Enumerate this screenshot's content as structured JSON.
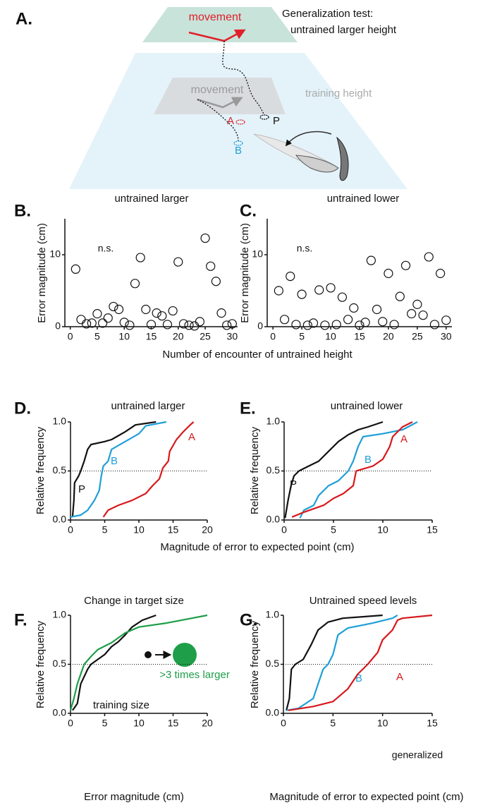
{
  "diagram": {
    "label": "A.",
    "test_movement": "movement",
    "test_title": "Generalization test:",
    "test_subtitle": "untrained larger height",
    "training_movement": "movement",
    "training_label": "training height",
    "point_a": "A",
    "point_p": "P",
    "point_b": "B"
  },
  "chart_data": [
    {
      "type": "scatter",
      "panel": "B.",
      "title": "untrained larger",
      "ylabel": "Error magnitude (cm)",
      "xlabel": "Number of encounter of untrained height",
      "annotation": "n.s.",
      "color": "#111111",
      "x": [
        1,
        2,
        3,
        4,
        5,
        6,
        7,
        8,
        9,
        10,
        11,
        12,
        13,
        14,
        15,
        16,
        17,
        18,
        19,
        20,
        21,
        22,
        23,
        24,
        25,
        26,
        27,
        28,
        29,
        30
      ],
      "values": [
        8.0,
        1.0,
        0.4,
        0.5,
        1.8,
        0.5,
        1.2,
        2.8,
        2.4,
        0.6,
        0.2,
        6.0,
        9.6,
        2.4,
        0.3,
        1.9,
        1.5,
        0.3,
        2.2,
        9.0,
        0.4,
        0.2,
        0.1,
        0.7,
        12.3,
        8.4,
        6.3,
        1.9,
        0.2,
        0.4
      ],
      "xlim": [
        -1,
        31
      ],
      "ylim": [
        0,
        15
      ],
      "xticks": [
        0,
        5,
        10,
        15,
        20,
        25,
        30
      ],
      "yticks": [
        0,
        10
      ]
    },
    {
      "type": "scatter",
      "panel": "C.",
      "title": "untrained lower",
      "ylabel": "Error magnitude (cm)",
      "annotation": "n.s.",
      "color": "#111111",
      "x": [
        1,
        2,
        3,
        4,
        5,
        6,
        7,
        8,
        9,
        10,
        11,
        12,
        13,
        14,
        15,
        16,
        17,
        18,
        19,
        20,
        21,
        22,
        23,
        24,
        25,
        26,
        27,
        28,
        29,
        30
      ],
      "values": [
        5.0,
        1.0,
        7.0,
        0.3,
        4.5,
        0.2,
        0.5,
        5.1,
        0.2,
        5.4,
        0.3,
        4.1,
        1.0,
        2.6,
        0.2,
        0.6,
        9.2,
        2.4,
        0.7,
        7.4,
        0.3,
        4.2,
        8.5,
        1.8,
        3.1,
        1.6,
        9.7,
        0.3,
        7.4,
        0.9
      ],
      "xlim": [
        -1,
        31
      ],
      "ylim": [
        0,
        15
      ],
      "xticks": [
        0,
        5,
        10,
        15,
        20,
        25,
        30
      ],
      "yticks": [
        0,
        10
      ]
    },
    {
      "type": "line",
      "panel": "D.",
      "title": "untrained larger",
      "ylabel": "Relative frequency",
      "xlabel": "Magnitude of error to expected point (cm)",
      "xlim": [
        0,
        20
      ],
      "ylim": [
        0,
        1
      ],
      "xticks": [
        0,
        5,
        10,
        15,
        20
      ],
      "yticks": [
        {
          "value": 0,
          "label": "0.0"
        },
        {
          "value": 0.5,
          "label": "0.5"
        },
        {
          "value": 1,
          "label": "1.0"
        }
      ],
      "ref_line": 0.5,
      "series": [
        {
          "name": "P",
          "color": "#111111",
          "x": [
            0.3,
            0.5,
            0.6,
            1.2,
            1.5,
            2.0,
            2.5,
            3,
            5,
            6,
            7,
            8,
            9.5,
            12.5
          ],
          "values": [
            0.03,
            0.2,
            0.38,
            0.45,
            0.5,
            0.6,
            0.72,
            0.77,
            0.8,
            0.82,
            0.86,
            0.9,
            0.97,
            1.0
          ]
        },
        {
          "name": "B",
          "color": "#1e9fd8",
          "x": [
            0,
            1.5,
            2.5,
            3.5,
            4.2,
            4.5,
            4.8,
            5.5,
            6,
            8,
            10,
            10.5,
            11,
            14
          ],
          "values": [
            0.03,
            0.05,
            0.1,
            0.2,
            0.3,
            0.45,
            0.55,
            0.6,
            0.72,
            0.8,
            0.88,
            0.92,
            0.96,
            1.0
          ]
        },
        {
          "name": "A",
          "color": "#d7191c",
          "x": [
            4.8,
            5.5,
            7,
            9,
            11,
            12,
            13,
            13.5,
            14.3,
            14.5,
            15.5,
            16.5,
            17.5,
            18
          ],
          "values": [
            0.03,
            0.1,
            0.15,
            0.2,
            0.27,
            0.35,
            0.42,
            0.53,
            0.6,
            0.7,
            0.82,
            0.9,
            0.97,
            1.0
          ]
        }
      ]
    },
    {
      "type": "line",
      "panel": "E.",
      "title": "untrained lower",
      "ylabel": "Relative frequency",
      "xlim": [
        0,
        15
      ],
      "ylim": [
        0,
        1
      ],
      "xticks": [
        0,
        5,
        10,
        15
      ],
      "yticks": [
        {
          "value": 0,
          "label": "0.0"
        },
        {
          "value": 0.5,
          "label": "0.5"
        },
        {
          "value": 1,
          "label": "1.0"
        }
      ],
      "ref_line": 0.5,
      "series": [
        {
          "name": "P",
          "color": "#111111",
          "x": [
            0.1,
            0.4,
            0.7,
            1,
            1.5,
            2.5,
            3.5,
            4.5,
            5.5,
            6.5,
            7.5,
            8.5,
            10
          ],
          "values": [
            0.02,
            0.2,
            0.35,
            0.45,
            0.5,
            0.55,
            0.6,
            0.7,
            0.8,
            0.87,
            0.92,
            0.95,
            1.0
          ]
        },
        {
          "name": "B",
          "color": "#1e9fd8",
          "x": [
            1.6,
            2,
            3,
            3.5,
            4.5,
            5.5,
            6.5,
            7,
            7.5,
            8,
            10,
            12,
            13.5
          ],
          "values": [
            0.02,
            0.1,
            0.15,
            0.25,
            0.35,
            0.4,
            0.5,
            0.6,
            0.75,
            0.85,
            0.88,
            0.92,
            1.0
          ]
        },
        {
          "name": "A",
          "color": "#d7191c",
          "x": [
            0.8,
            2,
            4,
            5,
            6,
            7,
            7.3,
            9,
            10,
            10.7,
            11,
            12,
            13
          ],
          "values": [
            0.03,
            0.08,
            0.15,
            0.22,
            0.27,
            0.35,
            0.5,
            0.55,
            0.62,
            0.75,
            0.85,
            0.95,
            1.0
          ]
        }
      ]
    },
    {
      "type": "line",
      "panel": "F.",
      "title": "Change in target size",
      "ylabel": "Relative frequency",
      "xlabel": "Error magnitude (cm)",
      "xlim": [
        0,
        20
      ],
      "ylim": [
        0,
        1
      ],
      "xticks": [
        0,
        5,
        10,
        15,
        20
      ],
      "yticks": [
        {
          "value": 0,
          "label": "0.0"
        },
        {
          "value": 0.5,
          "label": "0.5"
        },
        {
          "value": 1,
          "label": "1.0"
        }
      ],
      "ref_line": 0.5,
      "series": [
        {
          "name": "training size",
          "color": "#111111",
          "x": [
            0.3,
            1,
            1.5,
            2.5,
            3,
            4,
            5,
            6,
            7,
            8,
            9,
            10.5,
            12.5
          ],
          "values": [
            0.03,
            0.1,
            0.3,
            0.45,
            0.5,
            0.55,
            0.6,
            0.68,
            0.73,
            0.8,
            0.88,
            0.95,
            1.0
          ]
        },
        {
          "name": ">3 times larger",
          "color": "#1e9e48",
          "x": [
            0,
            0.5,
            1,
            1.5,
            2,
            3,
            4,
            6,
            8,
            10,
            14,
            17,
            20
          ],
          "values": [
            0.03,
            0.15,
            0.3,
            0.4,
            0.5,
            0.58,
            0.65,
            0.72,
            0.82,
            0.88,
            0.92,
            0.96,
            1.0
          ]
        }
      ]
    },
    {
      "type": "line",
      "panel": "G.",
      "title": "Untrained speed levels",
      "ylabel": "Relative frequency",
      "xlabel": "Magnitude of error to expected point (cm)",
      "annotation": "generalized",
      "xlim": [
        0,
        15
      ],
      "ylim": [
        0,
        1
      ],
      "xticks": [
        0,
        5,
        10,
        15
      ],
      "yticks": [
        {
          "value": 0,
          "label": "0.0"
        },
        {
          "value": 0.5,
          "label": "0.5"
        },
        {
          "value": 1,
          "label": "1.0"
        }
      ],
      "ref_line": 0.5,
      "series": [
        {
          "color": "#111111",
          "x": [
            0.3,
            0.6,
            0.8,
            1.2,
            2,
            2.8,
            3.5,
            4.5,
            6,
            10
          ],
          "values": [
            0.03,
            0.15,
            0.45,
            0.5,
            0.55,
            0.7,
            0.85,
            0.93,
            0.97,
            1.0
          ]
        },
        {
          "name": "B",
          "color": "#1e9fd8",
          "x": [
            0.3,
            1.5,
            3,
            3.5,
            4,
            4.5,
            5,
            5.5,
            6.5,
            9,
            11,
            11.5
          ],
          "values": [
            0.03,
            0.05,
            0.15,
            0.3,
            0.45,
            0.5,
            0.6,
            0.8,
            0.87,
            0.92,
            0.97,
            1.0
          ]
        },
        {
          "name": "A",
          "color": "#d7191c",
          "x": [
            0.5,
            3,
            5,
            6.5,
            7.5,
            8.5,
            9.5,
            10,
            11,
            11.5,
            12,
            15
          ],
          "values": [
            0.03,
            0.07,
            0.12,
            0.25,
            0.4,
            0.5,
            0.62,
            0.75,
            0.85,
            0.95,
            0.97,
            1.0
          ]
        }
      ]
    }
  ]
}
